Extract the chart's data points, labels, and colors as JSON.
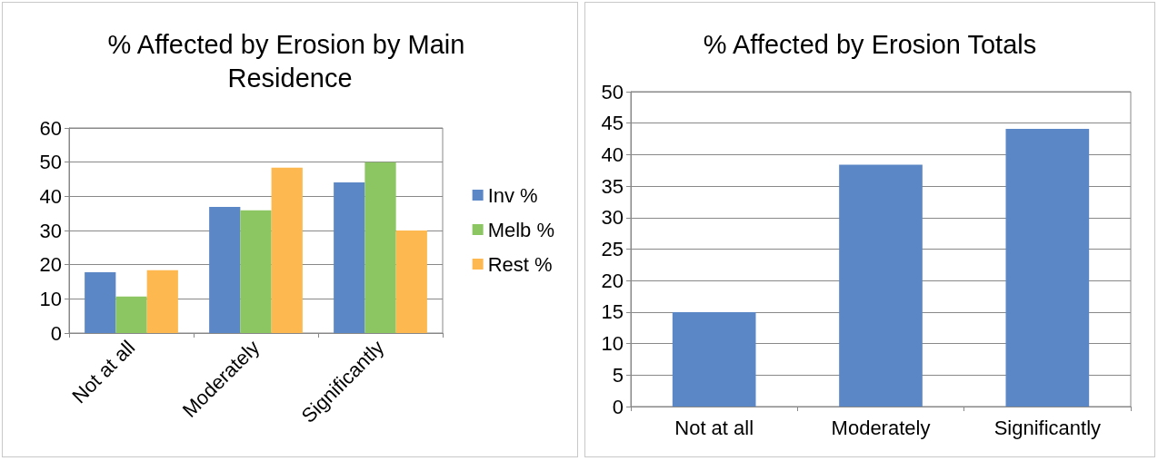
{
  "chart_data": [
    {
      "type": "bar",
      "title": "% Affected by Erosion by Main Residence",
      "categories": [
        "Not at all",
        "Moderately",
        "Significantly"
      ],
      "series": [
        {
          "name": "Inv %",
          "color": "#5b87c6",
          "values": [
            17.8,
            36.9,
            44.1
          ]
        },
        {
          "name": "Melb %",
          "color": "#8cc663",
          "values": [
            10.7,
            35.9,
            50
          ]
        },
        {
          "name": "Rest %",
          "color": "#fdb84f",
          "values": [
            18.4,
            48.4,
            30
          ]
        }
      ],
      "ylim": [
        0,
        60
      ],
      "yticks": [
        0,
        10,
        20,
        30,
        40,
        50,
        60
      ],
      "grid": "y",
      "legend": "right"
    },
    {
      "type": "bar",
      "title": "% Affected by Erosion Totals",
      "categories": [
        "Not at all",
        "Moderately",
        "Significantly"
      ],
      "series": [
        {
          "color": "#5b87c6",
          "values": [
            15,
            38.4,
            44.1
          ]
        }
      ],
      "ylim": [
        0,
        50
      ],
      "yticks": [
        0,
        5,
        10,
        15,
        20,
        25,
        30,
        35,
        40,
        45,
        50
      ],
      "grid": "y",
      "legend": false
    }
  ]
}
